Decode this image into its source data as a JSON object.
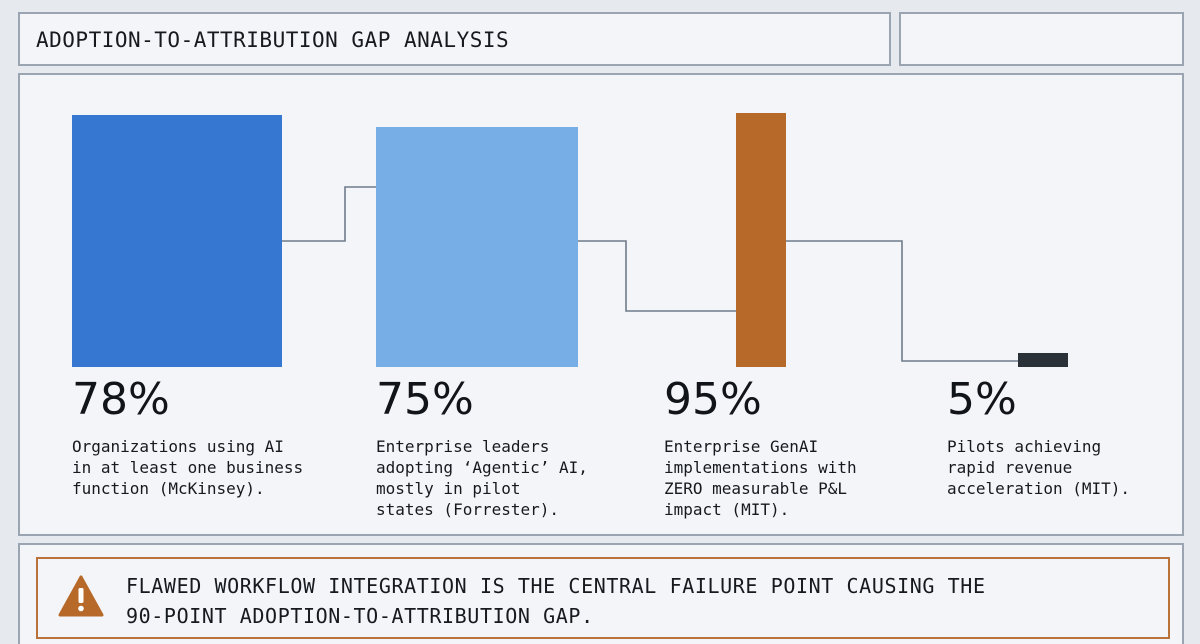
{
  "header": {
    "title": "ADOPTION-TO-ATTRIBUTION GAP ANALYSIS"
  },
  "colors": {
    "bar_1": "#3677d2",
    "bar_2": "#78aee6",
    "bar_3": "#b7692a",
    "bar_4": "#2b3138",
    "connector": "#6f7c8a",
    "alert_border": "#b9723a",
    "alert_icon": "#b7692a"
  },
  "chart_data": {
    "type": "bar",
    "categories": [
      "Organizations using AI in at least one business function (McKinsey).",
      "Enterprise leaders adopting ‘Agentic’ AI, mostly in pilot states (Forrester).",
      "Enterprise GenAI implementations with ZERO measurable P&L impact (MIT).",
      "Pilots achieving rapid revenue acceleration (MIT)."
    ],
    "values": [
      78,
      75,
      95,
      5
    ],
    "value_labels": [
      "78%",
      "75%",
      "95%",
      "5%"
    ],
    "descriptions": [
      "Organizations using AI\nin at least one business\nfunction (McKinsey).",
      "Enterprise leaders\nadopting ‘Agentic’ AI,\nmostly in pilot\nstates (Forrester).",
      "Enterprise GenAI\nimplementations with\nZERO measurable P&L\nimpact (MIT).",
      "Pilots achieving\nrapid revenue\nacceleration (MIT)."
    ],
    "unit": "%",
    "grid": false,
    "legend": "none"
  },
  "alert": {
    "icon": "warning-triangle-icon",
    "text": "FLAWED WORKFLOW INTEGRATION IS THE CENTRAL FAILURE POINT CAUSING THE\n90-POINT ADOPTION-TO-ATTRIBUTION GAP."
  }
}
